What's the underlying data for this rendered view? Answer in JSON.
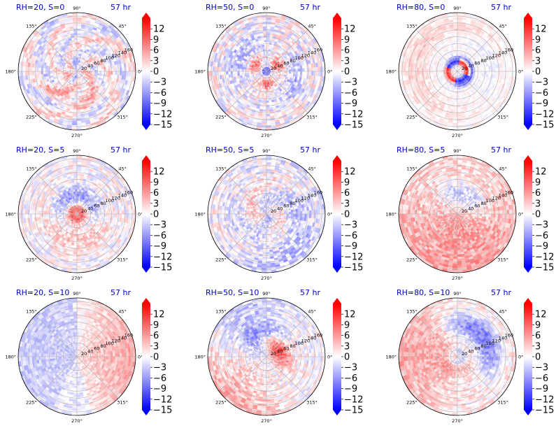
{
  "chart_data": {
    "type": "heatmap",
    "subtype": "polar-contour-grid",
    "grid_rows": 3,
    "grid_cols": 3,
    "colormap": "bwr",
    "colorbar": {
      "ticks": [
        "12",
        "9",
        "6",
        "3",
        "0",
        "−3",
        "−6",
        "−9",
        "−12",
        "−15"
      ],
      "range": [
        -15,
        15
      ],
      "extend": "both"
    },
    "angle_ticks": [
      "45°",
      "90°",
      "135°",
      "180°",
      "225°",
      "270°",
      "315°",
      "0°"
    ],
    "radial_ticks": [
      "20",
      "40",
      "60",
      "80",
      "100",
      "120",
      "140",
      "160"
    ],
    "radial_range": [
      0,
      170
    ],
    "grid": true,
    "panels": [
      {
        "title": "RH=20, S=0",
        "time": "57 hr",
        "pattern": 0
      },
      {
        "title": "RH=50, S=0",
        "time": "57 hr",
        "pattern": 1
      },
      {
        "title": "RH=80, S=0",
        "time": "57 hr",
        "pattern": 2
      },
      {
        "title": "RH=20, S=5",
        "time": "57 hr",
        "pattern": 3
      },
      {
        "title": "RH=50, S=5",
        "time": "57 hr",
        "pattern": 4
      },
      {
        "title": "RH=80, S=5",
        "time": "57 hr",
        "pattern": 5
      },
      {
        "title": "RH=20, S=10",
        "time": "57 hr",
        "pattern": 6
      },
      {
        "title": "RH=50, S=10",
        "time": "57 hr",
        "pattern": 7
      },
      {
        "title": "RH=80, S=10",
        "time": "57 hr",
        "pattern": 8
      }
    ]
  }
}
